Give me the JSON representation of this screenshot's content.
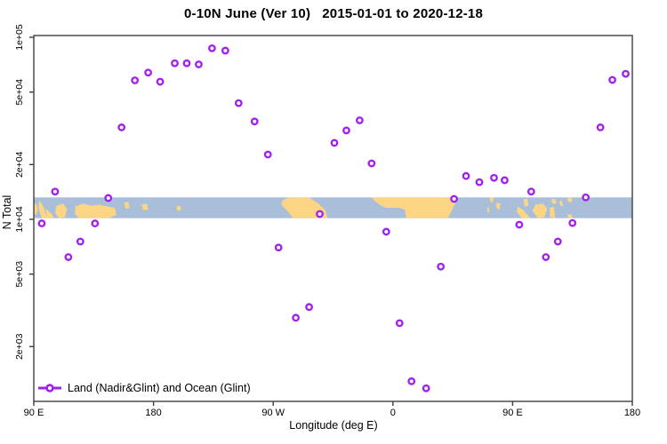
{
  "title": "0-10N June (Ver 10)   2015-01-01 to 2020-12-18",
  "chart_data": {
    "type": "scatter",
    "title": "0-10N June (Ver 10)   2015-01-01 to 2020-12-18",
    "xlabel": "Longitude (deg E)",
    "ylabel": "N Total",
    "x_axis": {
      "range": [
        90,
        540
      ],
      "ticks": [
        90,
        180,
        270,
        360,
        450,
        540
      ],
      "tick_labels": [
        "90 E",
        "180",
        "90 W",
        "0",
        "90 E",
        "180"
      ]
    },
    "y_axis": {
      "scale": "log10",
      "range": [
        1000,
        102000
      ],
      "ticks": [
        100000,
        50000,
        20000,
        10000,
        5000,
        2000
      ],
      "tick_labels": [
        "1e+05",
        "5e+04",
        "2e+04",
        "1e+04",
        "5e+03",
        "2e+03"
      ]
    },
    "legend": {
      "position": "bottom-left",
      "label": "Land (Nadir&Glint) and Ocean (Glint)"
    },
    "series": [
      {
        "name": "Land (Nadir&Glint) and Ocean (Glint)",
        "marker": "open-circle",
        "color": "#a020f0",
        "points": [
          {
            "lon": 224,
            "n": 87000
          },
          {
            "lon": 234,
            "n": 84500
          },
          {
            "lon": 196,
            "n": 72000
          },
          {
            "lon": 205,
            "n": 72000
          },
          {
            "lon": 214,
            "n": 71000
          },
          {
            "lon": 176,
            "n": 64000
          },
          {
            "lon": 166,
            "n": 58000
          },
          {
            "lon": 185,
            "n": 57000
          },
          {
            "lon": 156,
            "n": 32000
          },
          {
            "lon": 106,
            "n": 14200
          },
          {
            "lon": 244,
            "n": 43500
          },
          {
            "lon": 256,
            "n": 34500
          },
          {
            "lon": 335,
            "n": 35000
          },
          {
            "lon": 325,
            "n": 30800
          },
          {
            "lon": 316,
            "n": 26300
          },
          {
            "lon": 266,
            "n": 22700
          },
          {
            "lon": 344,
            "n": 20300
          },
          {
            "lon": 525,
            "n": 58300
          },
          {
            "lon": 535,
            "n": 63000
          },
          {
            "lon": 516,
            "n": 32000
          },
          {
            "lon": 415,
            "n": 17300
          },
          {
            "lon": 425,
            "n": 16000
          },
          {
            "lon": 436,
            "n": 16900
          },
          {
            "lon": 444,
            "n": 16400
          },
          {
            "lon": 146,
            "n": 13100
          },
          {
            "lon": 96,
            "n": 9500
          },
          {
            "lon": 136,
            "n": 9500
          },
          {
            "lon": 125,
            "n": 7550
          },
          {
            "lon": 116,
            "n": 6200
          },
          {
            "lon": 305,
            "n": 10700
          },
          {
            "lon": 355,
            "n": 8550
          },
          {
            "lon": 274,
            "n": 7000
          },
          {
            "lon": 297,
            "n": 3300
          },
          {
            "lon": 287,
            "n": 2880
          },
          {
            "lon": 365,
            "n": 2690
          },
          {
            "lon": 374,
            "n": 1290
          },
          {
            "lon": 385,
            "n": 1180
          },
          {
            "lon": 464,
            "n": 14200
          },
          {
            "lon": 505,
            "n": 13200
          },
          {
            "lon": 406,
            "n": 12950
          },
          {
            "lon": 455,
            "n": 9350
          },
          {
            "lon": 495,
            "n": 9550
          },
          {
            "lon": 484,
            "n": 7550
          },
          {
            "lon": 475,
            "n": 6200
          },
          {
            "lon": 396,
            "n": 5500
          }
        ]
      }
    ],
    "map_band": {
      "lat_range": "0-10N",
      "value_top": 13200,
      "value_bottom": 10150,
      "ocean_color": "#a9bed9",
      "land_color": "#fbd584",
      "land_polygons": [
        [
          [
            90,
            0.35
          ],
          [
            92,
            0.3
          ],
          [
            93,
            0.6
          ],
          [
            91.5,
            0.85
          ],
          [
            90,
            0.8
          ]
        ],
        [
          [
            94,
            0.15
          ],
          [
            97,
            0.4
          ],
          [
            99,
            0.8
          ],
          [
            101,
            1
          ],
          [
            96,
            1
          ],
          [
            93.5,
            0.5
          ]
        ],
        [
          [
            99,
            0.55
          ],
          [
            103,
            0.75
          ],
          [
            105,
            1
          ],
          [
            100,
            1
          ]
        ],
        [
          [
            107,
            0.4
          ],
          [
            112,
            0.3
          ],
          [
            115,
            0.55
          ],
          [
            113.5,
            0.95
          ],
          [
            109,
            1
          ],
          [
            106,
            0.75
          ]
        ],
        [
          [
            121,
            0.45
          ],
          [
            127,
            0.3
          ],
          [
            133,
            0.4
          ],
          [
            139,
            0.35
          ],
          [
            146,
            0.45
          ],
          [
            151,
            0.5
          ],
          [
            152,
            0.85
          ],
          [
            146,
            1
          ],
          [
            133,
            1
          ],
          [
            124,
            1
          ],
          [
            121,
            0.8
          ]
        ],
        [
          [
            158,
            0.25
          ],
          [
            161,
            0.2
          ],
          [
            162,
            0.5
          ],
          [
            159,
            0.55
          ]
        ],
        [
          [
            171,
            0.35
          ],
          [
            175,
            0.3
          ],
          [
            176,
            0.6
          ],
          [
            172,
            0.6
          ]
        ],
        [
          [
            197,
            0.45
          ],
          [
            200,
            0.4
          ],
          [
            201,
            0.6
          ],
          [
            198,
            0.65
          ]
        ],
        [
          [
            277,
            0.15
          ],
          [
            282,
            0
          ],
          [
            297,
            0
          ],
          [
            304,
            0.3
          ],
          [
            309,
            0.6
          ],
          [
            311,
            1
          ],
          [
            285,
            1
          ],
          [
            280,
            0.6
          ],
          [
            276,
            0.35
          ]
        ],
        [
          [
            344,
            0
          ],
          [
            409,
            0
          ],
          [
            401.5,
            1
          ],
          [
            370,
            1
          ],
          [
            369,
            0.6
          ],
          [
            365,
            0.5
          ],
          [
            355,
            0.5
          ],
          [
            351,
            0.4
          ],
          [
            346,
            0.15
          ]
        ],
        [
          [
            433,
            0
          ],
          [
            436,
            0
          ],
          [
            435,
            0.25
          ],
          [
            433,
            0.2
          ]
        ],
        [
          [
            438,
            0.25
          ],
          [
            441,
            0.3
          ],
          [
            440,
            0.6
          ],
          [
            437.5,
            0.5
          ]
        ],
        [
          [
            431,
            0.5
          ],
          [
            432,
            0.45
          ],
          [
            432.5,
            0.75
          ],
          [
            431,
            0.7
          ]
        ],
        [
          [
            454,
            0.45
          ],
          [
            458,
            0.6
          ],
          [
            462,
            0.9
          ],
          [
            463,
            1
          ],
          [
            457,
            1
          ],
          [
            453,
            0.7
          ]
        ],
        [
          [
            458,
            0.1
          ],
          [
            461,
            0.05
          ],
          [
            462,
            0.4
          ],
          [
            459,
            0.45
          ]
        ],
        [
          [
            467,
            0.35
          ],
          [
            473,
            0.3
          ],
          [
            476,
            0.55
          ],
          [
            474,
            0.95
          ],
          [
            469,
            1
          ],
          [
            465,
            0.65
          ]
        ],
        [
          [
            478,
            0.5
          ],
          [
            481,
            0.45
          ],
          [
            482,
            1
          ],
          [
            478,
            0.95
          ]
        ],
        [
          [
            479,
            0.1
          ],
          [
            482,
            0.05
          ],
          [
            483,
            0.3
          ],
          [
            480,
            0.3
          ]
        ],
        [
          [
            485,
            0.2
          ],
          [
            487,
            0.15
          ],
          [
            488,
            0.45
          ],
          [
            486,
            0.4
          ]
        ],
        [
          [
            491,
            0.05
          ],
          [
            494,
            0.0
          ],
          [
            495,
            0.2
          ],
          [
            492,
            0.25
          ]
        ],
        [
          [
            491,
            0.85
          ],
          [
            494,
            0.8
          ],
          [
            495,
            1
          ],
          [
            492,
            1
          ]
        ]
      ]
    },
    "frame_color": "#3f3f3f"
  }
}
